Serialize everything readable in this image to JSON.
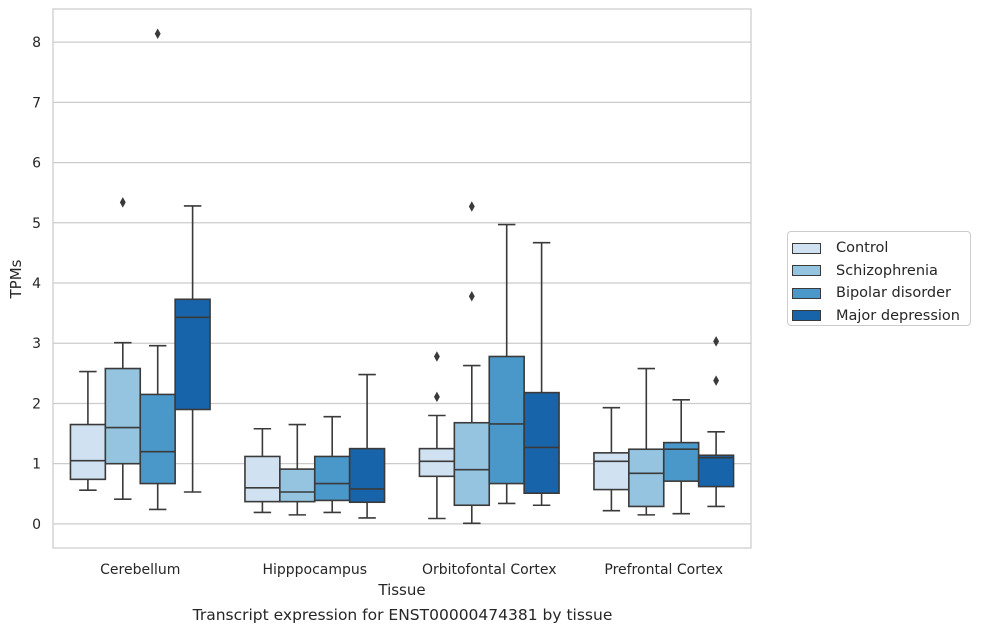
{
  "chart_data": {
    "type": "box",
    "caption": "Transcript expression for ENST00000474381 by tissue",
    "xlabel": "Tissue",
    "ylabel": "TPMs",
    "ylim": [
      -0.4,
      8.55
    ],
    "yticks": [
      0,
      1,
      2,
      3,
      4,
      5,
      6,
      7,
      8
    ],
    "grid": "horizontal",
    "legend_position": "right",
    "categories": [
      "Cerebellum",
      "Hipppocampus",
      "Orbitofontal Cortex",
      "Prefrontal Cortex"
    ],
    "series": [
      {
        "name": "Control",
        "color": "#d0e1f2",
        "boxes": [
          {
            "whislo": 0.56,
            "q1": 0.74,
            "med": 1.05,
            "q3": 1.65,
            "whishi": 2.53,
            "fliers": []
          },
          {
            "whislo": 0.19,
            "q1": 0.37,
            "med": 0.6,
            "q3": 1.12,
            "whishi": 1.58,
            "fliers": []
          },
          {
            "whislo": 0.09,
            "q1": 0.79,
            "med": 1.04,
            "q3": 1.25,
            "whishi": 1.8,
            "fliers": [
              2.11,
              2.78
            ]
          },
          {
            "whislo": 0.22,
            "q1": 0.57,
            "med": 1.04,
            "q3": 1.18,
            "whishi": 1.93,
            "fliers": []
          }
        ]
      },
      {
        "name": "Schizophrenia",
        "color": "#94c4df",
        "boxes": [
          {
            "whislo": 0.41,
            "q1": 1.0,
            "med": 1.6,
            "q3": 2.58,
            "whishi": 3.01,
            "fliers": [
              5.34
            ]
          },
          {
            "whislo": 0.15,
            "q1": 0.37,
            "med": 0.53,
            "q3": 0.91,
            "whishi": 1.65,
            "fliers": []
          },
          {
            "whislo": 0.01,
            "q1": 0.31,
            "med": 0.9,
            "q3": 1.68,
            "whishi": 2.63,
            "fliers": [
              3.78,
              5.27
            ]
          },
          {
            "whislo": 0.15,
            "q1": 0.29,
            "med": 0.84,
            "q3": 1.24,
            "whishi": 2.58,
            "fliers": []
          }
        ]
      },
      {
        "name": "Bipolar disorder",
        "color": "#4a98c9",
        "boxes": [
          {
            "whislo": 0.24,
            "q1": 0.67,
            "med": 1.2,
            "q3": 2.15,
            "whishi": 2.96,
            "fliers": [
              8.14
            ]
          },
          {
            "whislo": 0.19,
            "q1": 0.39,
            "med": 0.67,
            "q3": 1.12,
            "whishi": 1.78,
            "fliers": []
          },
          {
            "whislo": 0.34,
            "q1": 0.67,
            "med": 1.66,
            "q3": 2.78,
            "whishi": 4.97,
            "fliers": []
          },
          {
            "whislo": 0.17,
            "q1": 0.71,
            "med": 1.24,
            "q3": 1.35,
            "whishi": 2.06,
            "fliers": []
          }
        ]
      },
      {
        "name": "Major depression",
        "color": "#1764ab",
        "boxes": [
          {
            "whislo": 0.53,
            "q1": 1.9,
            "med": 3.43,
            "q3": 3.73,
            "whishi": 5.28,
            "fliers": []
          },
          {
            "whislo": 0.1,
            "q1": 0.36,
            "med": 0.58,
            "q3": 1.25,
            "whishi": 2.48,
            "fliers": []
          },
          {
            "whislo": 0.31,
            "q1": 0.51,
            "med": 1.27,
            "q3": 2.18,
            "whishi": 4.67,
            "fliers": []
          },
          {
            "whislo": 0.29,
            "q1": 0.62,
            "med": 1.1,
            "q3": 1.14,
            "whishi": 1.53,
            "fliers": [
              2.38,
              3.03
            ]
          }
        ]
      }
    ]
  }
}
